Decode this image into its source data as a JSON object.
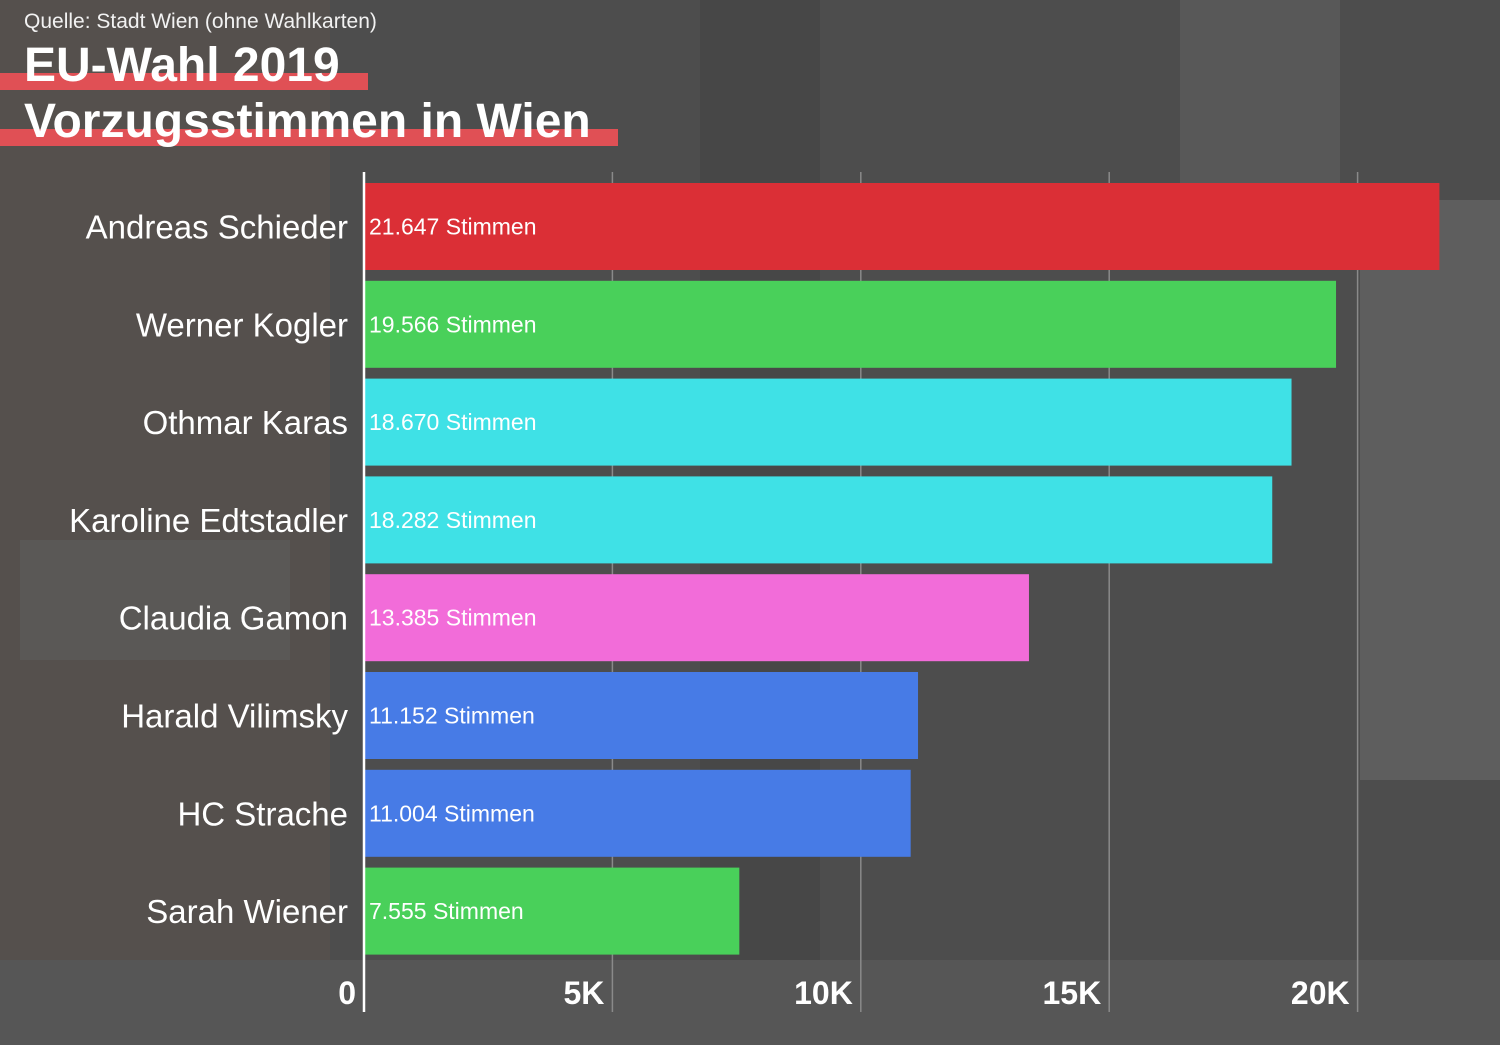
{
  "source": "Quelle: Stadt Wien (ohne Wahlkarten)",
  "title_line1": "EU-Wahl 2019",
  "title_line2": "Vorzugsstimmen in Wien",
  "chart_data": {
    "type": "bar",
    "orientation": "horizontal",
    "title": "EU-Wahl 2019 Vorzugsstimmen in Wien",
    "categories": [
      "Andreas Schieder",
      "Werner Kogler",
      "Othmar Karas",
      "Karoline Edtstadler",
      "Claudia Gamon",
      "Harald Vilimsky",
      "HC Strache",
      "Sarah Wiener"
    ],
    "values": [
      21647,
      19566,
      18670,
      18282,
      13385,
      11152,
      11004,
      7555
    ],
    "value_labels": [
      "21.647 Stimmen",
      "19.566 Stimmen",
      "18.670 Stimmen",
      "18.282 Stimmen",
      "13.385 Stimmen",
      "11.152 Stimmen",
      "11.004 Stimmen",
      "7.555 Stimmen"
    ],
    "colors": [
      "#db2f36",
      "#49d05a",
      "#3fe1e6",
      "#3fe1e6",
      "#f26cd9",
      "#477be6",
      "#477be6",
      "#49d05a"
    ],
    "xticks": [
      0,
      5000,
      10000,
      15000,
      20000
    ],
    "xtick_labels": [
      "0",
      "5K",
      "10K",
      "15K",
      "20K"
    ],
    "xlim": [
      0,
      22000
    ],
    "grid": true
  }
}
